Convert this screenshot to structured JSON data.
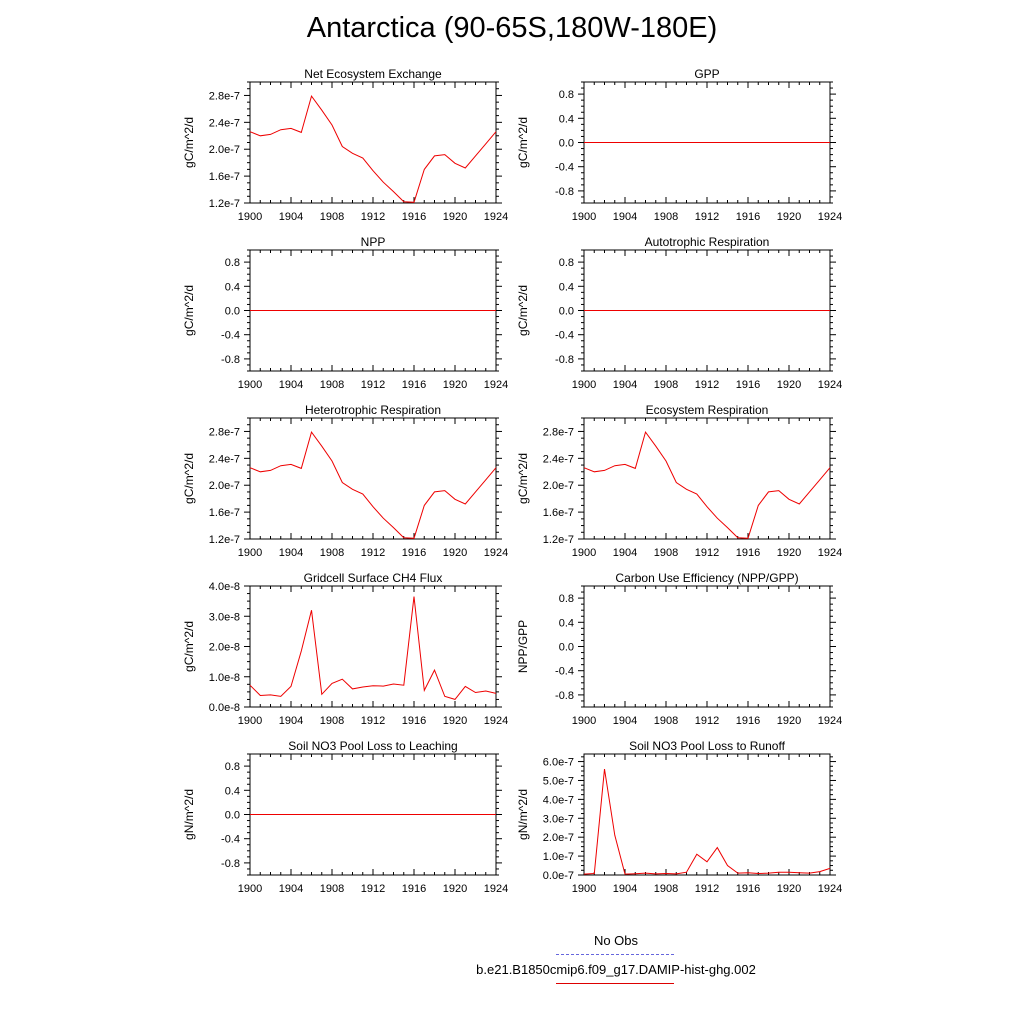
{
  "page": {
    "title": "Antarctica (90-65S,180W-180E)"
  },
  "legend": {
    "entries": [
      {
        "label": "No Obs",
        "color": "#6666dd",
        "style": "dashed"
      },
      {
        "label": "b.e21.B1850cmip6.f09_g17.DAMIP-hist-ghg.002",
        "color": "#dd0000",
        "style": "solid"
      }
    ]
  },
  "colors": {
    "series": "#ee0000",
    "axis": "#000000",
    "background": "#ffffff"
  },
  "chart_data": [
    {
      "type": "line",
      "title": "Net Ecosystem Exchange",
      "ylabel": "gC/m^2/d",
      "xlim": [
        1900,
        1924
      ],
      "ylim": [
        1.2e-07,
        3e-07
      ],
      "xticks": [
        1900,
        1904,
        1908,
        1912,
        1916,
        1920,
        1924
      ],
      "xtick_labels": [
        "1900",
        "1904",
        "1908",
        "1912",
        "1916",
        "1920",
        "1924"
      ],
      "yticks": [
        1.2e-07,
        1.6e-07,
        2e-07,
        2.4e-07,
        2.8e-07
      ],
      "ytick_labels": [
        "1.2e-7",
        "1.6e-7",
        "2.0e-7",
        "2.4e-7",
        "2.8e-7"
      ],
      "x": [
        1900,
        1901,
        1902,
        1903,
        1904,
        1905,
        1906,
        1907,
        1908,
        1909,
        1910,
        1911,
        1912,
        1913,
        1914,
        1915,
        1916,
        1917,
        1918,
        1919,
        1920,
        1921,
        1922,
        1923,
        1924
      ],
      "series": [
        {
          "values": [
            2.26e-07,
            2.2e-07,
            2.22e-07,
            2.29e-07,
            2.31e-07,
            2.25e-07,
            2.79e-07,
            2.58e-07,
            2.36e-07,
            2.04e-07,
            1.94e-07,
            1.87e-07,
            1.68e-07,
            1.51e-07,
            1.37e-07,
            1.22e-07,
            1.21e-07,
            1.7e-07,
            1.9e-07,
            1.92e-07,
            1.79e-07,
            1.72e-07,
            1.9e-07,
            2.08e-07,
            2.26e-07
          ]
        }
      ]
    },
    {
      "type": "line",
      "title": "GPP",
      "ylabel": "gC/m^2/d",
      "xlim": [
        1900,
        1924
      ],
      "ylim": [
        -1.0,
        1.0
      ],
      "xticks": [
        1900,
        1904,
        1908,
        1912,
        1916,
        1920,
        1924
      ],
      "xtick_labels": [
        "1900",
        "1904",
        "1908",
        "1912",
        "1916",
        "1920",
        "1924"
      ],
      "yticks": [
        -0.8,
        -0.4,
        0.0,
        0.4,
        0.8
      ],
      "ytick_labels": [
        "-0.8",
        "-0.4",
        "0.0",
        "0.4",
        "0.8"
      ],
      "x": [
        1900,
        1924
      ],
      "series": [
        {
          "values": [
            0,
            0
          ]
        }
      ]
    },
    {
      "type": "line",
      "title": "NPP",
      "ylabel": "gC/m^2/d",
      "xlim": [
        1900,
        1924
      ],
      "ylim": [
        -1.0,
        1.0
      ],
      "xticks": [
        1900,
        1904,
        1908,
        1912,
        1916,
        1920,
        1924
      ],
      "xtick_labels": [
        "1900",
        "1904",
        "1908",
        "1912",
        "1916",
        "1920",
        "1924"
      ],
      "yticks": [
        -0.8,
        -0.4,
        0.0,
        0.4,
        0.8
      ],
      "ytick_labels": [
        "-0.8",
        "-0.4",
        "0.0",
        "0.4",
        "0.8"
      ],
      "x": [
        1900,
        1924
      ],
      "series": [
        {
          "values": [
            0,
            0
          ]
        }
      ]
    },
    {
      "type": "line",
      "title": "Autotrophic Respiration",
      "ylabel": "gC/m^2/d",
      "xlim": [
        1900,
        1924
      ],
      "ylim": [
        -1.0,
        1.0
      ],
      "xticks": [
        1900,
        1904,
        1908,
        1912,
        1916,
        1920,
        1924
      ],
      "xtick_labels": [
        "1900",
        "1904",
        "1908",
        "1912",
        "1916",
        "1920",
        "1924"
      ],
      "yticks": [
        -0.8,
        -0.4,
        0.0,
        0.4,
        0.8
      ],
      "ytick_labels": [
        "-0.8",
        "-0.4",
        "0.0",
        "0.4",
        "0.8"
      ],
      "x": [
        1900,
        1924
      ],
      "series": [
        {
          "values": [
            0,
            0
          ]
        }
      ]
    },
    {
      "type": "line",
      "title": "Heterotrophic Respiration",
      "ylabel": "gC/m^2/d",
      "xlim": [
        1900,
        1924
      ],
      "ylim": [
        1.2e-07,
        3e-07
      ],
      "xticks": [
        1900,
        1904,
        1908,
        1912,
        1916,
        1920,
        1924
      ],
      "xtick_labels": [
        "1900",
        "1904",
        "1908",
        "1912",
        "1916",
        "1920",
        "1924"
      ],
      "yticks": [
        1.2e-07,
        1.6e-07,
        2e-07,
        2.4e-07,
        2.8e-07
      ],
      "ytick_labels": [
        "1.2e-7",
        "1.6e-7",
        "2.0e-7",
        "2.4e-7",
        "2.8e-7"
      ],
      "x": [
        1900,
        1901,
        1902,
        1903,
        1904,
        1905,
        1906,
        1907,
        1908,
        1909,
        1910,
        1911,
        1912,
        1913,
        1914,
        1915,
        1916,
        1917,
        1918,
        1919,
        1920,
        1921,
        1922,
        1923,
        1924
      ],
      "series": [
        {
          "values": [
            2.26e-07,
            2.2e-07,
            2.22e-07,
            2.29e-07,
            2.31e-07,
            2.25e-07,
            2.79e-07,
            2.58e-07,
            2.36e-07,
            2.04e-07,
            1.94e-07,
            1.87e-07,
            1.68e-07,
            1.51e-07,
            1.37e-07,
            1.22e-07,
            1.21e-07,
            1.7e-07,
            1.9e-07,
            1.92e-07,
            1.79e-07,
            1.72e-07,
            1.9e-07,
            2.08e-07,
            2.26e-07
          ]
        }
      ]
    },
    {
      "type": "line",
      "title": "Ecosystem Respiration",
      "ylabel": "gC/m^2/d",
      "xlim": [
        1900,
        1924
      ],
      "ylim": [
        1.2e-07,
        3e-07
      ],
      "xticks": [
        1900,
        1904,
        1908,
        1912,
        1916,
        1920,
        1924
      ],
      "xtick_labels": [
        "1900",
        "1904",
        "1908",
        "1912",
        "1916",
        "1920",
        "1924"
      ],
      "yticks": [
        1.2e-07,
        1.6e-07,
        2e-07,
        2.4e-07,
        2.8e-07
      ],
      "ytick_labels": [
        "1.2e-7",
        "1.6e-7",
        "2.0e-7",
        "2.4e-7",
        "2.8e-7"
      ],
      "x": [
        1900,
        1901,
        1902,
        1903,
        1904,
        1905,
        1906,
        1907,
        1908,
        1909,
        1910,
        1911,
        1912,
        1913,
        1914,
        1915,
        1916,
        1917,
        1918,
        1919,
        1920,
        1921,
        1922,
        1923,
        1924
      ],
      "series": [
        {
          "values": [
            2.26e-07,
            2.2e-07,
            2.22e-07,
            2.29e-07,
            2.31e-07,
            2.25e-07,
            2.79e-07,
            2.58e-07,
            2.36e-07,
            2.04e-07,
            1.94e-07,
            1.87e-07,
            1.68e-07,
            1.51e-07,
            1.37e-07,
            1.22e-07,
            1.21e-07,
            1.7e-07,
            1.9e-07,
            1.92e-07,
            1.79e-07,
            1.72e-07,
            1.9e-07,
            2.08e-07,
            2.26e-07
          ]
        }
      ]
    },
    {
      "type": "line",
      "title": "Gridcell Surface CH4 Flux",
      "ylabel": "gC/m^2/d",
      "xlim": [
        1900,
        1924
      ],
      "ylim": [
        0.0,
        4e-08
      ],
      "xticks": [
        1900,
        1904,
        1908,
        1912,
        1916,
        1920,
        1924
      ],
      "xtick_labels": [
        "1900",
        "1904",
        "1908",
        "1912",
        "1916",
        "1920",
        "1924"
      ],
      "yticks": [
        0.0,
        1e-08,
        2e-08,
        3e-08,
        4e-08
      ],
      "ytick_labels": [
        "0.0e-8",
        "1.0e-8",
        "2.0e-8",
        "3.0e-8",
        "4.0e-8"
      ],
      "x": [
        1900,
        1901,
        1902,
        1903,
        1904,
        1905,
        1906,
        1907,
        1908,
        1909,
        1910,
        1911,
        1912,
        1913,
        1914,
        1915,
        1916,
        1917,
        1918,
        1919,
        1920,
        1921,
        1922,
        1923,
        1924
      ],
      "series": [
        {
          "values": [
            7.2e-09,
            3.8e-09,
            4e-09,
            3.5e-09,
            6.8e-09,
            1.85e-08,
            3.2e-08,
            4.2e-09,
            7.8e-09,
            9.2e-09,
            6e-09,
            6.6e-09,
            7e-09,
            6.9e-09,
            7.6e-09,
            7.2e-09,
            3.65e-08,
            5.5e-09,
            1.22e-08,
            3.5e-09,
            2.5e-09,
            6.8e-09,
            4.8e-09,
            5.3e-09,
            4.5e-09
          ]
        }
      ]
    },
    {
      "type": "line",
      "title": "Carbon Use Efficiency (NPP/GPP)",
      "ylabel": "NPP/GPP",
      "xlim": [
        1900,
        1924
      ],
      "ylim": [
        -1.0,
        1.0
      ],
      "xticks": [
        1900,
        1904,
        1908,
        1912,
        1916,
        1920,
        1924
      ],
      "xtick_labels": [
        "1900",
        "1904",
        "1908",
        "1912",
        "1916",
        "1920",
        "1924"
      ],
      "yticks": [
        -0.8,
        -0.4,
        0.0,
        0.4,
        0.8
      ],
      "ytick_labels": [
        "-0.8",
        "-0.4",
        "0.0",
        "0.4",
        "0.8"
      ],
      "x": [],
      "series": [
        {
          "values": []
        }
      ]
    },
    {
      "type": "line",
      "title": "Soil NO3 Pool Loss to Leaching",
      "ylabel": "gN/m^2/d",
      "xlim": [
        1900,
        1924
      ],
      "ylim": [
        -1.0,
        1.0
      ],
      "xticks": [
        1900,
        1904,
        1908,
        1912,
        1916,
        1920,
        1924
      ],
      "xtick_labels": [
        "1900",
        "1904",
        "1908",
        "1912",
        "1916",
        "1920",
        "1924"
      ],
      "yticks": [
        -0.8,
        -0.4,
        0.0,
        0.4,
        0.8
      ],
      "ytick_labels": [
        "-0.8",
        "-0.4",
        "0.0",
        "0.4",
        "0.8"
      ],
      "x": [
        1900,
        1924
      ],
      "series": [
        {
          "values": [
            0,
            0
          ]
        }
      ]
    },
    {
      "type": "line",
      "title": "Soil NO3 Pool Loss to Runoff",
      "ylabel": "gN/m^2/d",
      "xlim": [
        1900,
        1924
      ],
      "ylim": [
        0.0,
        6.4e-07
      ],
      "xticks": [
        1900,
        1904,
        1908,
        1912,
        1916,
        1920,
        1924
      ],
      "xtick_labels": [
        "1900",
        "1904",
        "1908",
        "1912",
        "1916",
        "1920",
        "1924"
      ],
      "yticks": [
        0.0,
        1e-07,
        2e-07,
        3e-07,
        4e-07,
        5e-07,
        6e-07
      ],
      "ytick_labels": [
        "0.0e-7",
        "1.0e-7",
        "2.0e-7",
        "3.0e-7",
        "4.0e-7",
        "5.0e-7",
        "6.0e-7"
      ],
      "x": [
        1900,
        1901,
        1902,
        1903,
        1904,
        1905,
        1906,
        1907,
        1908,
        1909,
        1910,
        1911,
        1912,
        1913,
        1914,
        1915,
        1916,
        1917,
        1918,
        1919,
        1920,
        1921,
        1922,
        1923,
        1924
      ],
      "series": [
        {
          "values": [
            5e-09,
            8e-09,
            5.6e-07,
            2.1e-07,
            5e-09,
            7e-09,
            1e-08,
            6e-09,
            8e-09,
            6e-09,
            1.5e-08,
            1.1e-07,
            7e-08,
            1.45e-07,
            5e-08,
            1e-08,
            1.2e-08,
            8e-09,
            1e-08,
            1.5e-08,
            1.5e-08,
            1.2e-08,
            1e-08,
            1.8e-08,
            3.5e-08
          ]
        }
      ]
    }
  ]
}
